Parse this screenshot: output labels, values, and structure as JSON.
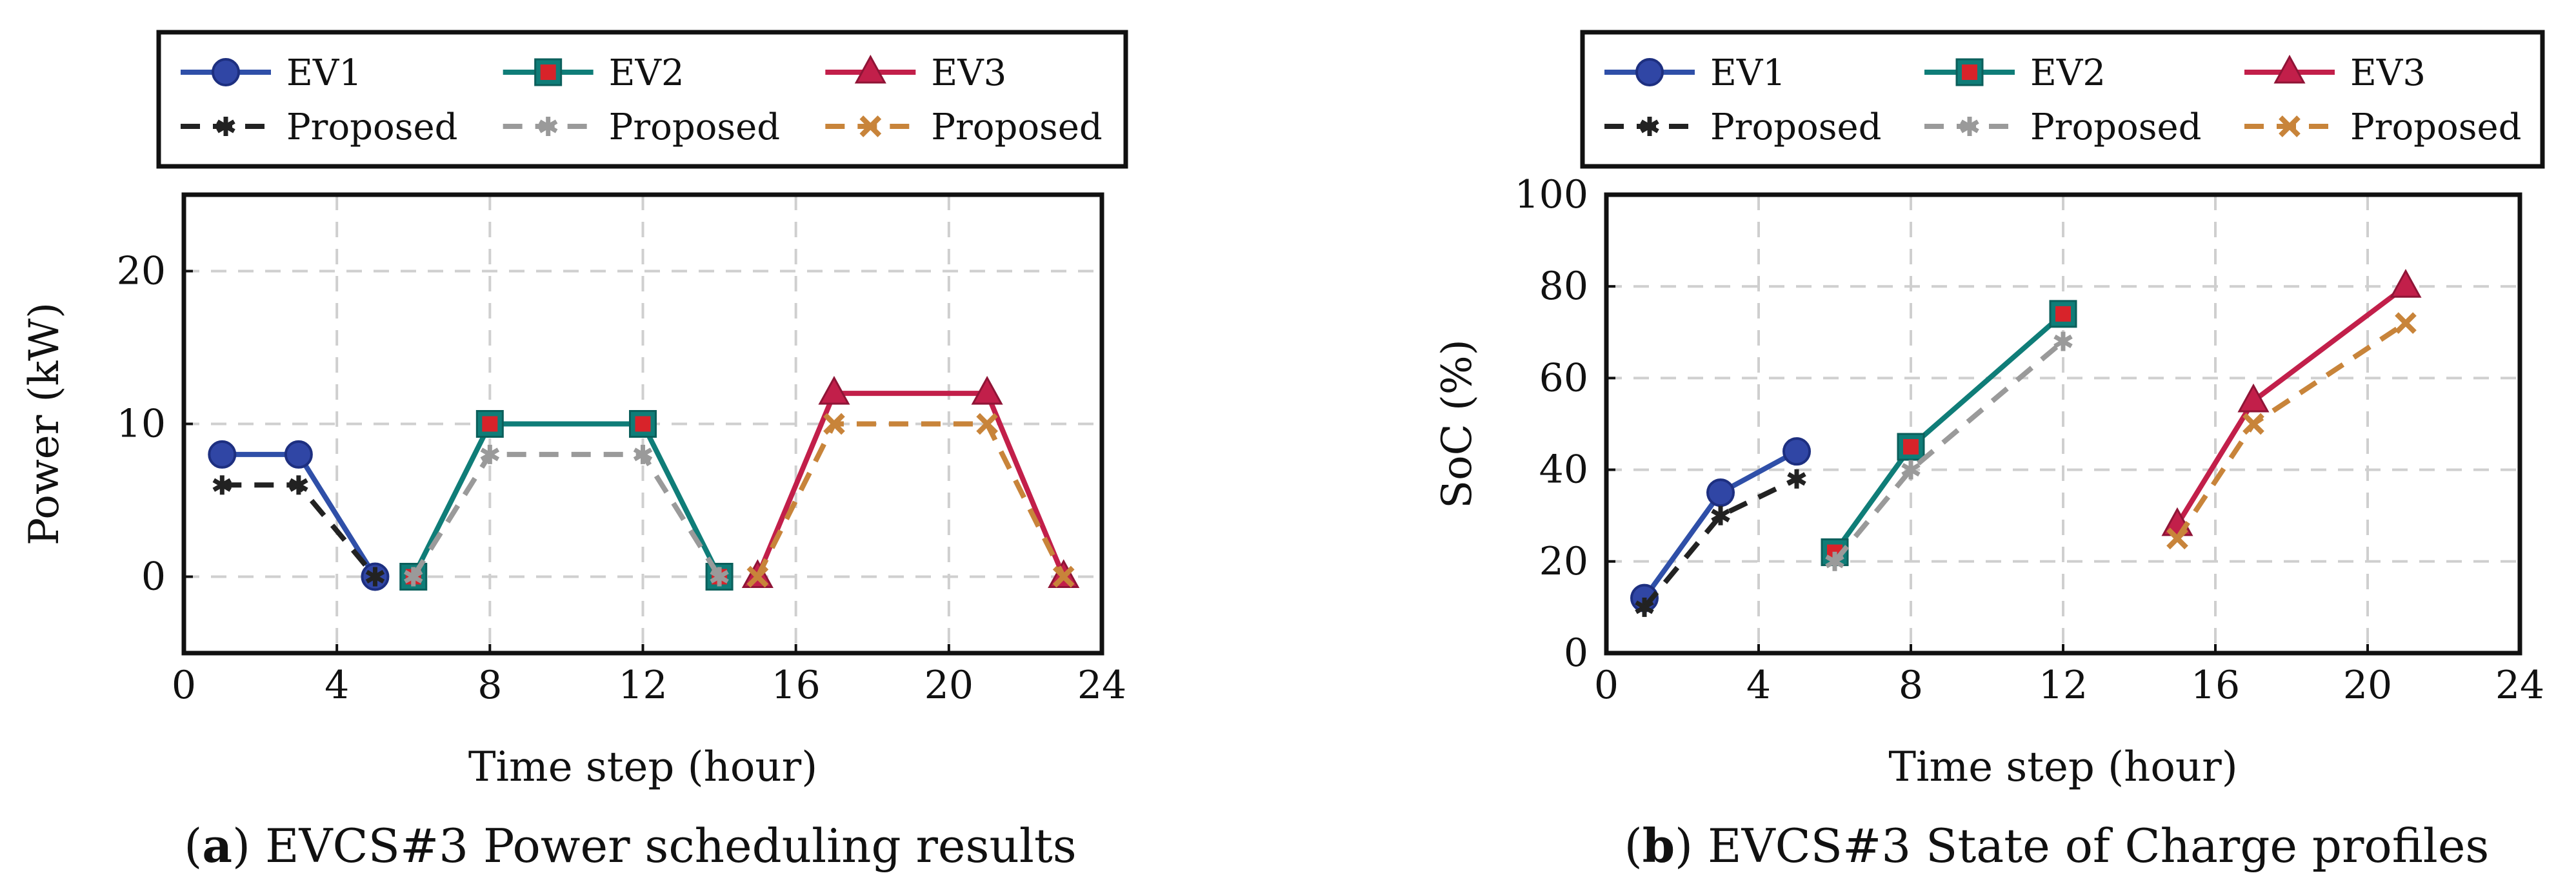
{
  "chart_data": [
    {
      "type": "line",
      "caption_tag": "(a)",
      "caption_tag_letter": "a",
      "caption": "EVCS#3 Power scheduling results",
      "xlabel": "Time step (hour)",
      "ylabel": "Power (kW)",
      "xlim": [
        0,
        24
      ],
      "ylim": [
        -5,
        25
      ],
      "xticks": [
        0,
        4,
        8,
        12,
        16,
        20,
        24
      ],
      "yticks": [
        0,
        10,
        20
      ],
      "grid": true,
      "legend_position": "top, outside, 3 columns",
      "series": [
        {
          "name": "EV1",
          "color": "#2f4fa8",
          "style": "solid",
          "marker": "circle",
          "points": [
            [
              1,
              8
            ],
            [
              3,
              8
            ],
            [
              5,
              0
            ]
          ]
        },
        {
          "name": "Proposed",
          "color": "#222222",
          "style": "dashed",
          "marker": "star",
          "points": [
            [
              1,
              6
            ],
            [
              3,
              6
            ],
            [
              5,
              0
            ]
          ]
        },
        {
          "name": "EV2",
          "color": "#0f7d78",
          "style": "solid",
          "marker": "square",
          "points": [
            [
              6,
              0
            ],
            [
              8,
              10
            ],
            [
              12,
              10
            ],
            [
              14,
              0
            ]
          ]
        },
        {
          "name": "Proposed",
          "color": "#9a9a9a",
          "style": "dashed",
          "marker": "star",
          "points": [
            [
              6,
              0
            ],
            [
              8,
              8
            ],
            [
              12,
              8
            ],
            [
              14,
              0
            ]
          ]
        },
        {
          "name": "EV3",
          "color": "#c21f4a",
          "style": "solid",
          "marker": "triangle",
          "points": [
            [
              15,
              0
            ],
            [
              17,
              12
            ],
            [
              21,
              12
            ],
            [
              23,
              0
            ]
          ]
        },
        {
          "name": "Proposed",
          "color": "#c8843a",
          "style": "dashed",
          "marker": "cross",
          "points": [
            [
              15,
              0
            ],
            [
              17,
              10
            ],
            [
              21,
              10
            ],
            [
              23,
              0
            ]
          ]
        }
      ]
    },
    {
      "type": "line",
      "caption_tag": "(b)",
      "caption_tag_letter": "b",
      "caption": "EVCS#3 State of Charge profiles",
      "xlabel": "Time step (hour)",
      "ylabel": "SoC (%)",
      "xlim": [
        0,
        24
      ],
      "ylim": [
        0,
        100
      ],
      "xticks": [
        0,
        4,
        8,
        12,
        16,
        20,
        24
      ],
      "yticks": [
        0,
        20,
        40,
        60,
        80,
        100
      ],
      "grid": true,
      "legend_position": "top, outside, 3 columns",
      "series": [
        {
          "name": "EV1",
          "color": "#2f4fa8",
          "style": "solid",
          "marker": "circle",
          "points": [
            [
              1,
              12
            ],
            [
              3,
              35
            ],
            [
              5,
              44
            ]
          ]
        },
        {
          "name": "Proposed",
          "color": "#222222",
          "style": "dashed",
          "marker": "star",
          "points": [
            [
              1,
              10
            ],
            [
              3,
              30
            ],
            [
              5,
              38
            ]
          ]
        },
        {
          "name": "EV2",
          "color": "#0f7d78",
          "style": "solid",
          "marker": "square",
          "points": [
            [
              6,
              22
            ],
            [
              8,
              45
            ],
            [
              12,
              74
            ]
          ]
        },
        {
          "name": "Proposed",
          "color": "#9a9a9a",
          "style": "dashed",
          "marker": "star",
          "points": [
            [
              6,
              20
            ],
            [
              8,
              40
            ],
            [
              12,
              68
            ]
          ]
        },
        {
          "name": "EV3",
          "color": "#c21f4a",
          "style": "solid",
          "marker": "triangle",
          "points": [
            [
              15,
              28
            ],
            [
              17,
              55
            ],
            [
              21,
              80
            ]
          ]
        },
        {
          "name": "Proposed",
          "color": "#c8843a",
          "style": "dashed",
          "marker": "cross",
          "points": [
            [
              15,
              25
            ],
            [
              17,
              50
            ],
            [
              21,
              72
            ]
          ]
        }
      ]
    }
  ]
}
